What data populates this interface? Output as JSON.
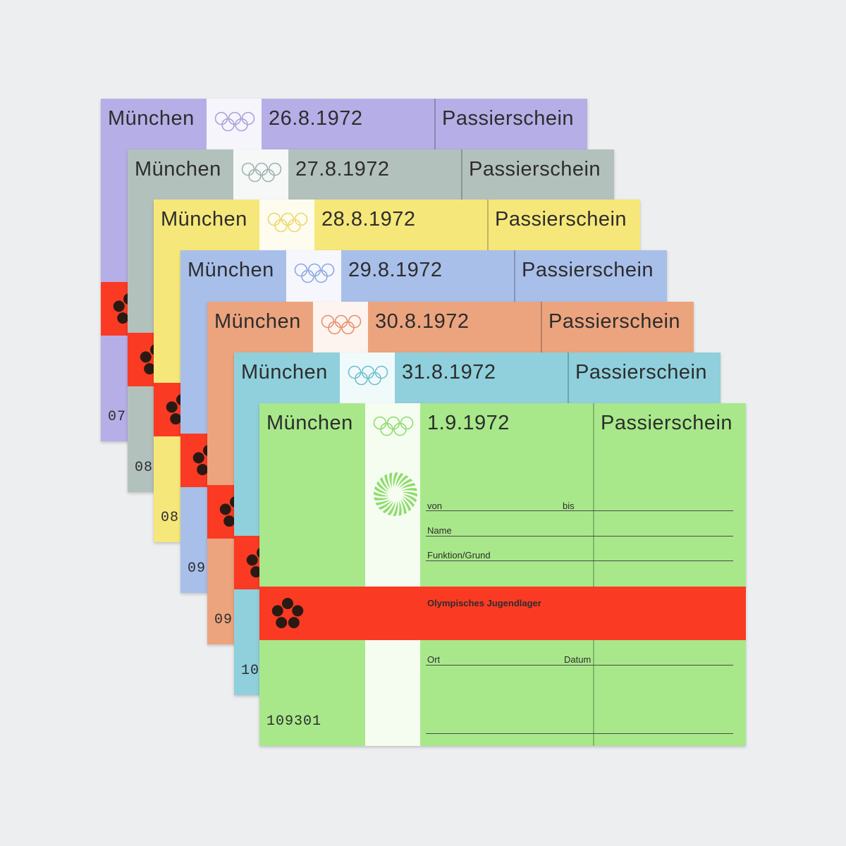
{
  "cards": [
    {
      "city": "München",
      "date": "26.8.1972",
      "title": "Passierschein",
      "serial": "07",
      "color": "#b6aee6",
      "rings_color": "#a9a3d9"
    },
    {
      "city": "München",
      "date": "27.8.1972",
      "title": "Passierschein",
      "serial": "08",
      "color": "#b3c1bd",
      "rings_color": "#9fb2b0"
    },
    {
      "city": "München",
      "date": "28.8.1972",
      "title": "Passierschein",
      "serial": "08",
      "color": "#f6e77a",
      "rings_color": "#ebd86c"
    },
    {
      "city": "München",
      "date": "29.8.1972",
      "title": "Passierschein",
      "serial": "09",
      "color": "#a8bfea",
      "rings_color": "#8fa9de"
    },
    {
      "city": "München",
      "date": "30.8.1972",
      "title": "Passierschein",
      "serial": "09",
      "color": "#eca47e",
      "rings_color": "#e79270"
    },
    {
      "city": "München",
      "date": "31.8.1972",
      "title": "Passierschein",
      "serial": "10",
      "color": "#8fd0dc",
      "rings_color": "#6fc0d0"
    },
    {
      "city": "München",
      "date": "1.9.1972",
      "title": "Passierschein",
      "serial": "109301",
      "color": "#a8e88a",
      "rings_color": "#8fdc6e"
    }
  ],
  "form": {
    "von": "von",
    "bis": "bis",
    "name": "Name",
    "funktion": "Funktion/Grund",
    "band_text": "Olympisches Jugendlager",
    "ort": "Ort",
    "datum": "Datum"
  },
  "colors": {
    "background": "#eceeef",
    "red_band": "#fb3a23",
    "flower": "#2b1a14"
  },
  "icons": [
    "olympic-rings-icon",
    "flower-emblem-icon",
    "radiant-sun-emblem-icon"
  ]
}
